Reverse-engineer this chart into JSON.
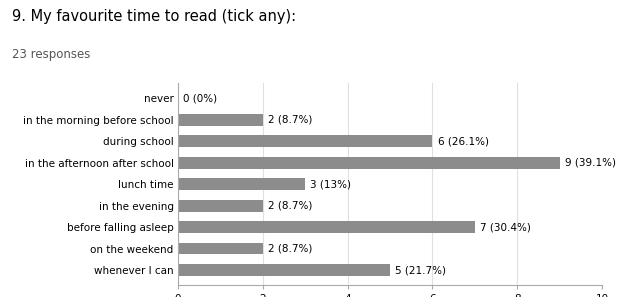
{
  "title": "9. My favourite time to read (tick any):",
  "subtitle": "23 responses",
  "categories": [
    "never",
    "in the morning before school",
    "during school",
    "in the afternoon after school",
    "lunch time",
    "in the evening",
    "before falling asleep",
    "on the weekend",
    "whenever I can"
  ],
  "values": [
    0,
    2,
    6,
    9,
    3,
    2,
    7,
    2,
    5
  ],
  "labels": [
    "0 (0%)",
    "2 (8.7%)",
    "6 (26.1%)",
    "9 (39.1%)",
    "3 (13%)",
    "2 (8.7%)",
    "7 (30.4%)",
    "2 (8.7%)",
    "5 (21.7%)"
  ],
  "bar_color": "#8c8c8c",
  "background_color": "#ffffff",
  "xlim": [
    0,
    10
  ],
  "xticks": [
    0,
    2,
    4,
    6,
    8,
    10
  ],
  "title_fontsize": 10.5,
  "subtitle_fontsize": 8.5,
  "tick_fontsize": 7.5,
  "bar_label_fontsize": 7.5
}
